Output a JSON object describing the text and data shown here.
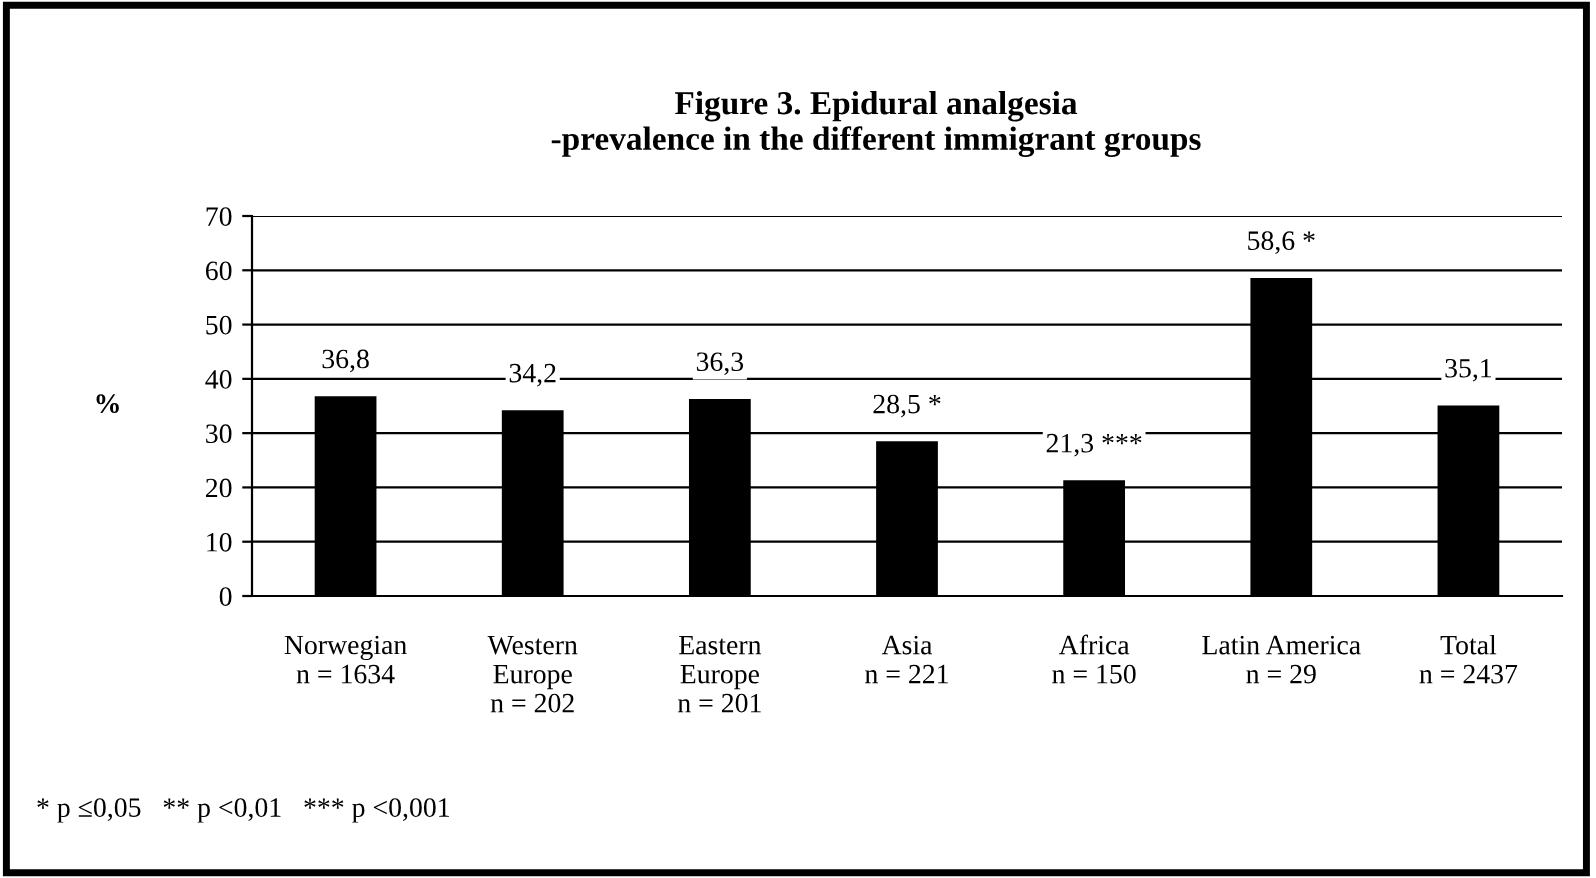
{
  "chart_data": {
    "type": "bar",
    "title": "Figure 3. Epidural analgesia\n-prevalence in the different immigrant groups",
    "ylabel": "%",
    "categories": [
      "Norwegian\nn = 1634",
      "Western\nEurope\nn = 202",
      "Eastern\nEurope\nn = 201",
      "Asia\nn = 221",
      "Africa\nn = 150",
      "Latin America\nn = 29",
      "Total\nn = 2437"
    ],
    "values": [
      36.8,
      34.2,
      36.3,
      28.5,
      21.3,
      58.6,
      35.1
    ],
    "value_labels": [
      "36,8",
      "34,2",
      "36,3",
      "28,5 *",
      "21,3 ***",
      "58,6 *",
      "35,1"
    ],
    "color": "#000000",
    "ylim": [
      0,
      70
    ],
    "yticks": [
      0,
      10,
      20,
      30,
      40,
      50,
      60,
      70
    ],
    "grid": "y",
    "annotations": [
      "* p ≤0,05   ** p <0,01   *** p <0,001"
    ]
  }
}
